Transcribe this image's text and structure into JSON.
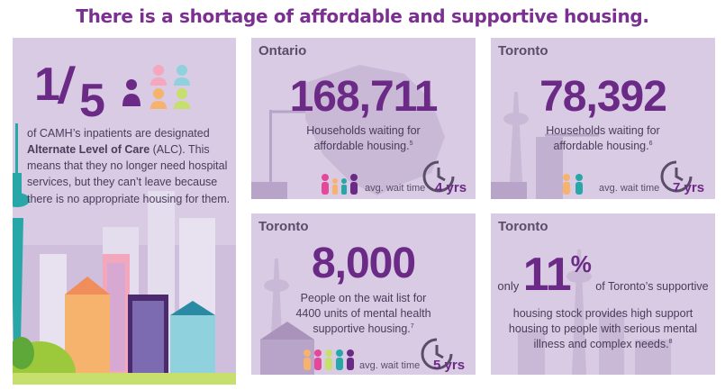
{
  "title": "There is a shortage of affordable and supportive housing.",
  "left_panel": {
    "fraction_numerator": "1",
    "fraction_denominator": "5",
    "text_before": "of CAMH’s inpatients are designated ",
    "text_bold": "Alternate Level of Care",
    "text_after": " (ALC). This means that they no longer need hospital services, but they can’t leave because there is no appropriate housing for them."
  },
  "ontario": {
    "region": "Ontario",
    "number": "168,711",
    "desc_line1": "Households waiting for",
    "desc_line2": "affordable housing.",
    "footnote": "5",
    "wait_label": "avg. wait time",
    "wait_value": "4 yrs"
  },
  "toronto_housing": {
    "region": "Toronto",
    "number": "78,392",
    "desc_line1": "Households waiting for",
    "desc_line2": "affordable housing.",
    "footnote": "6",
    "wait_label": "avg. wait time",
    "wait_value": "7 yrs"
  },
  "toronto_mental": {
    "region": "Toronto",
    "number": "8,000",
    "desc_line1": "People on the wait list for",
    "desc_line2": "4400 units of mental health",
    "desc_line3": "supportive housing.",
    "footnote": "7",
    "wait_label": "avg. wait time",
    "wait_value": "5 yrs"
  },
  "toronto_support": {
    "region": "Toronto",
    "only": "only",
    "number": "11",
    "percent": "%",
    "tail": "of Toronto’s supportive",
    "desc_line1": "housing stock provides high support",
    "desc_line2": "housing to people with serious mental",
    "desc_line3": "illness and complex needs.",
    "footnote": "8"
  },
  "colors": {
    "title": "#7a2f91",
    "panel_bg": "#d9cbe3",
    "accent_number": "#6b2a86",
    "text": "#4a3b5a"
  }
}
